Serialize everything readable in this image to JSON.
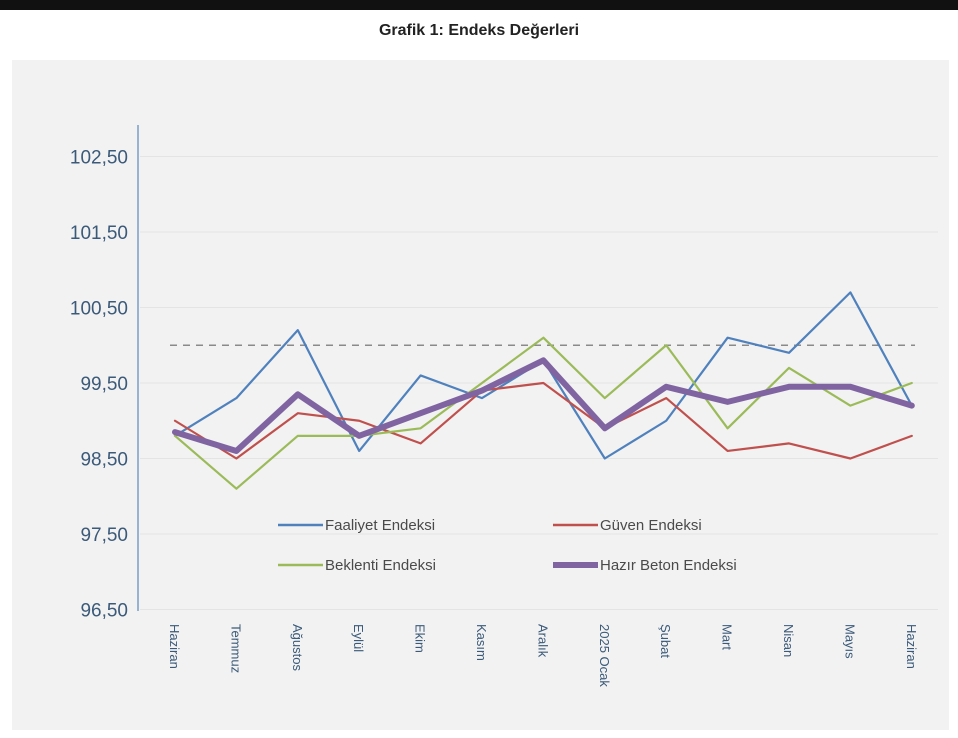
{
  "chart_data": {
    "type": "line",
    "title": "Grafik 1: Endeks Değerleri",
    "xlabel": "",
    "ylabel": "",
    "ylim": [
      96.5,
      103.0
    ],
    "yticks": [
      "96,50",
      "97,50",
      "98,50",
      "99,50",
      "100,50",
      "101,50",
      "102,50"
    ],
    "ytick_values": [
      96.5,
      97.5,
      98.5,
      99.5,
      100.5,
      101.5,
      102.5
    ],
    "categories": [
      "Haziran",
      "Temmuz",
      "Ağustos",
      "Eylül",
      "Ekim",
      "Kasım",
      "Aralık",
      "2025 Ocak",
      "Şubat",
      "Mart",
      "Nisan",
      "Mayıs",
      "Haziran"
    ],
    "reference_line": 100,
    "grid": true,
    "legend_position": "bottom-inside",
    "series": [
      {
        "name": "Faaliyet Endeksi",
        "color": "#4f81bd",
        "width": "thin",
        "values": [
          98.8,
          99.3,
          100.2,
          98.6,
          99.6,
          99.3,
          99.8,
          98.5,
          99.0,
          100.1,
          99.9,
          100.7,
          99.2
        ]
      },
      {
        "name": "Güven Endeksi",
        "color": "#c0504d",
        "width": "thin",
        "values": [
          99.0,
          98.5,
          99.1,
          99.0,
          98.7,
          99.4,
          99.5,
          98.9,
          99.3,
          98.6,
          98.7,
          98.5,
          98.8
        ]
      },
      {
        "name": "Beklenti Endeksi",
        "color": "#9bbb59",
        "width": "thin",
        "values": [
          98.8,
          98.1,
          98.8,
          98.8,
          98.9,
          99.5,
          100.1,
          99.3,
          100.0,
          98.9,
          99.7,
          99.2,
          99.5
        ]
      },
      {
        "name": "Hazır Beton Endeksi",
        "color": "#8064a2",
        "width": "thick",
        "values": [
          98.85,
          98.6,
          99.35,
          98.8,
          99.1,
          99.4,
          99.8,
          98.9,
          99.45,
          99.25,
          99.45,
          99.45,
          99.2
        ]
      }
    ]
  }
}
